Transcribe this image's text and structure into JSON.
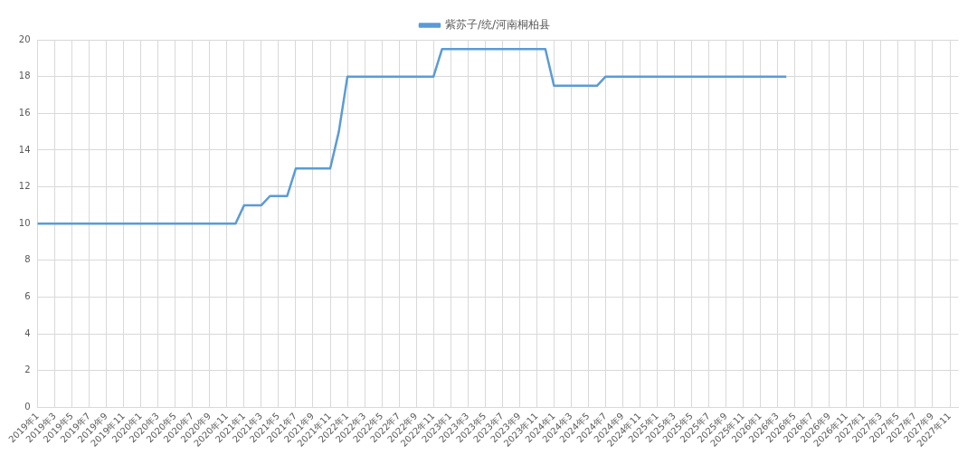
{
  "chart_data": {
    "type": "line",
    "categories": [
      "2019年1",
      null,
      "2019年3",
      null,
      "2019年5",
      null,
      "2019年7",
      null,
      "2019年9",
      null,
      "2019年11",
      null,
      "2020年1",
      null,
      "2020年3",
      null,
      "2020年5",
      null,
      "2020年7",
      null,
      "2020年9",
      null,
      "2020年11",
      null,
      "2021年1",
      null,
      "2021年3",
      null,
      "2021年5",
      null,
      "2021年7",
      null,
      "2021年9",
      null,
      "2021年11",
      null,
      "2022年1",
      null,
      "2022年3",
      null,
      "2022年5",
      null,
      "2022年7",
      null,
      "2022年9",
      null,
      "2022年11",
      null,
      "2023年1",
      null,
      "2023年3",
      null,
      "2023年5",
      null,
      "2023年7",
      null,
      "2023年9",
      null,
      "2023年11",
      null,
      "2024年1",
      null,
      "2024年3",
      null,
      "2024年5",
      null,
      "2024年7",
      null,
      "2024年9",
      null,
      "2024年11",
      null,
      "2025年1",
      null,
      "2025年3",
      null,
      "2025年5",
      null,
      "2025年7",
      null,
      "2025年9",
      null,
      "2025年11",
      null,
      "2026年1",
      null,
      "2026年3",
      null,
      "2026年5",
      null,
      "2026年7",
      null,
      "2026年9",
      null,
      "2026年11",
      null,
      "2027年1",
      null,
      "2027年3",
      null,
      "2027年5",
      null,
      "2027年7",
      null,
      "2027年9",
      null,
      "2027年11",
      null
    ],
    "series": [
      {
        "name": "紫苏子/统/河南桐柏县",
        "color": "#5b9bd5",
        "values": [
          10,
          10,
          10,
          10,
          10,
          10,
          10,
          10,
          10,
          10,
          10,
          10,
          10,
          10,
          10,
          10,
          10,
          10,
          10,
          10,
          10,
          10,
          10,
          10,
          11,
          11,
          11,
          11.5,
          11.5,
          11.5,
          13,
          13,
          13,
          13,
          13,
          15,
          18,
          18,
          18,
          18,
          18,
          18,
          18,
          18,
          18,
          18,
          18,
          19.5,
          19.5,
          19.5,
          19.5,
          19.5,
          19.5,
          19.5,
          19.5,
          19.5,
          19.5,
          19.5,
          19.5,
          19.5,
          17.5,
          17.5,
          17.5,
          17.5,
          17.5,
          17.5,
          18,
          18,
          18,
          18,
          18,
          18,
          18,
          18,
          18,
          18,
          18,
          18,
          18,
          18,
          18,
          18,
          18,
          18,
          18,
          18,
          18,
          18,
          null,
          null,
          null,
          null,
          null,
          null,
          null,
          null,
          null,
          null,
          null,
          null,
          null,
          null,
          null,
          null,
          null,
          null,
          null,
          null
        ]
      }
    ],
    "ylim": [
      0,
      20
    ],
    "yticks": [
      0,
      2,
      4,
      6,
      8,
      10,
      12,
      14,
      16,
      18,
      20
    ],
    "grid": true,
    "legend": "top",
    "marker": "none",
    "line_style": "solid"
  }
}
